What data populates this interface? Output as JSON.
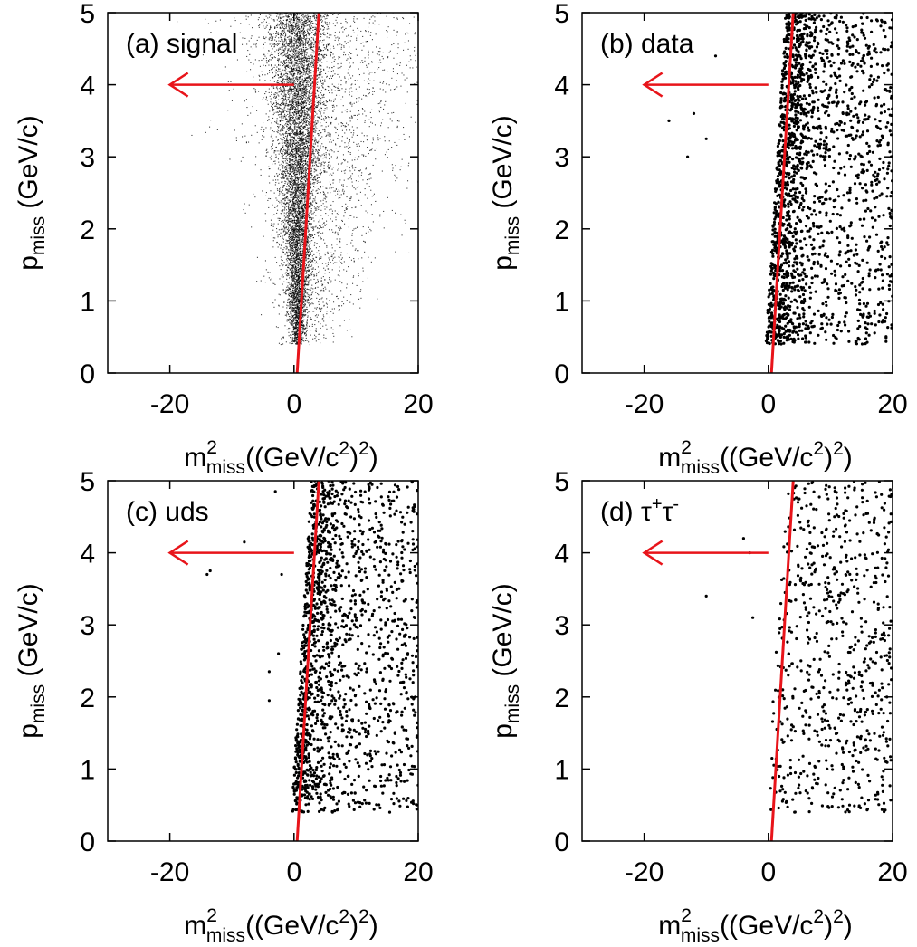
{
  "figure": {
    "xlabel_main": "m",
    "xlabel_sup": "2",
    "xlabel_sub": "miss",
    "xlabel_rest": "((GeV/c",
    "xlabel_sup2": "2",
    "xlabel_end": ")",
    "xlabel_sup3": "2",
    "xlabel_close": ")",
    "ylabel_main": "p",
    "ylabel_sub": "miss",
    "ylabel_rest": " (GeV/c)",
    "line_color": "#e8141a",
    "point_color": "#000000"
  },
  "chart_data": [
    {
      "type": "scatter",
      "panel": "a",
      "label": "(a) signal",
      "xlim": [
        -30,
        20
      ],
      "ylim": [
        0,
        5
      ],
      "xticks": [
        -20,
        0,
        20
      ],
      "yticks": [
        0,
        1,
        2,
        3,
        4,
        5
      ],
      "cut_line": {
        "x": [
          0.5,
          4.0
        ],
        "y": [
          0,
          5
        ]
      },
      "arrow": {
        "from": [
          0,
          4
        ],
        "to": [
          -20,
          4
        ]
      },
      "distribution": {
        "kind": "dense",
        "n_points": 9000,
        "y_range": [
          0.4,
          5
        ],
        "x_center": 0.5,
        "x_spread_per_unit_y": 1.3,
        "tail_fraction": 0.25
      }
    },
    {
      "type": "scatter",
      "panel": "b",
      "label": "(b) data",
      "xlim": [
        -30,
        20
      ],
      "ylim": [
        0,
        5
      ],
      "xticks": [
        -20,
        0,
        20
      ],
      "yticks": [
        0,
        1,
        2,
        3,
        4,
        5
      ],
      "cut_line": {
        "x": [
          0.5,
          4.0
        ],
        "y": [
          0,
          5
        ]
      },
      "arrow": {
        "from": [
          0,
          4
        ],
        "to": [
          -20,
          4
        ]
      },
      "distribution": {
        "kind": "sparse",
        "n_points": 1900,
        "y_range": [
          0.4,
          5
        ],
        "x_range": [
          -1,
          20
        ],
        "x_outliers": [
          [
            -12,
            3.6
          ],
          [
            -10,
            3.25
          ],
          [
            -13,
            3.0
          ],
          [
            -8.5,
            4.4
          ],
          [
            -16,
            3.5
          ]
        ]
      }
    },
    {
      "type": "scatter",
      "panel": "c",
      "label": "(c) uds",
      "xlim": [
        -30,
        20
      ],
      "ylim": [
        0,
        5
      ],
      "xticks": [
        -20,
        0,
        20
      ],
      "yticks": [
        0,
        1,
        2,
        3,
        4,
        5
      ],
      "cut_line": {
        "x": [
          0.5,
          4.0
        ],
        "y": [
          0,
          5
        ]
      },
      "arrow": {
        "from": [
          0,
          4
        ],
        "to": [
          -20,
          4
        ]
      },
      "distribution": {
        "kind": "sparse",
        "n_points": 1600,
        "y_range": [
          0.4,
          5
        ],
        "x_range": [
          -1,
          20
        ],
        "x_outliers": [
          [
            -8,
            4.15
          ],
          [
            -13.5,
            3.75
          ],
          [
            -14,
            3.7
          ],
          [
            -4,
            2.35
          ],
          [
            -4,
            1.95
          ],
          [
            -2.5,
            2.6
          ],
          [
            -2,
            3.7
          ],
          [
            -3,
            4.85
          ]
        ]
      }
    },
    {
      "type": "scatter",
      "panel": "d",
      "label_main": "(d) ",
      "label_tau": "τ",
      "label_plus": "+",
      "label_tau2": "τ",
      "label_minus": "-",
      "xlim": [
        -30,
        20
      ],
      "ylim": [
        0,
        5
      ],
      "xticks": [
        -20,
        0,
        20
      ],
      "yticks": [
        0,
        1,
        2,
        3,
        4,
        5
      ],
      "cut_line": {
        "x": [
          0.5,
          4.0
        ],
        "y": [
          0,
          5
        ]
      },
      "arrow": {
        "from": [
          0,
          4
        ],
        "to": [
          -20,
          4
        ]
      },
      "distribution": {
        "kind": "sparse",
        "n_points": 700,
        "y_range": [
          0.4,
          5
        ],
        "x_range": [
          -1,
          20
        ],
        "x_outliers": [
          [
            -10,
            3.4
          ],
          [
            -4,
            4.2
          ],
          [
            -2.5,
            3.1
          ],
          [
            -3,
            4.0
          ]
        ]
      }
    }
  ]
}
